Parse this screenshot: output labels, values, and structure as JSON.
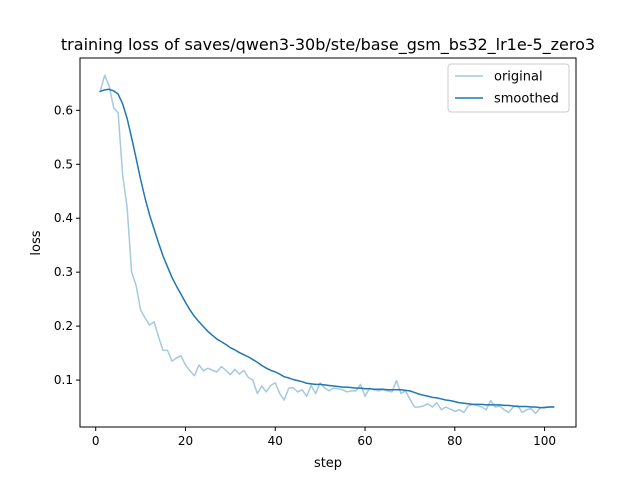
{
  "chart_data": {
    "type": "line",
    "title": "training loss of saves/qwen3-30b/ste/base_gsm_bs32_lr1e-5_zero3",
    "xlabel": "step",
    "ylabel": "loss",
    "xlim": [
      -3.5,
      107
    ],
    "ylim": [
      0.013,
      0.697
    ],
    "xticks": [
      0,
      20,
      40,
      60,
      80,
      100
    ],
    "yticks": [
      0.1,
      0.2,
      0.3,
      0.4,
      0.5,
      0.6
    ],
    "legend_position": "top-right",
    "series": [
      {
        "name": "original",
        "color": "#1f77b4",
        "alpha": 0.4,
        "x": [
          1,
          2,
          3,
          4,
          5,
          6,
          7,
          8,
          9,
          10,
          11,
          12,
          13,
          14,
          15,
          16,
          17,
          18,
          19,
          20,
          21,
          22,
          23,
          24,
          25,
          26,
          27,
          28,
          29,
          30,
          31,
          32,
          33,
          34,
          35,
          36,
          37,
          38,
          39,
          40,
          41,
          42,
          43,
          44,
          45,
          46,
          47,
          48,
          49,
          50,
          51,
          52,
          53,
          54,
          55,
          56,
          57,
          58,
          59,
          60,
          61,
          62,
          63,
          64,
          65,
          66,
          67,
          68,
          69,
          70,
          71,
          72,
          73,
          74,
          75,
          76,
          77,
          78,
          79,
          80,
          81,
          82,
          83,
          84,
          85,
          86,
          87,
          88,
          89,
          90,
          91,
          92,
          93,
          94,
          95,
          96,
          97,
          98,
          99,
          100,
          101,
          102
        ],
        "values": [
          0.635,
          0.665,
          0.645,
          0.605,
          0.595,
          0.48,
          0.42,
          0.3,
          0.275,
          0.23,
          0.215,
          0.202,
          0.208,
          0.18,
          0.155,
          0.155,
          0.135,
          0.141,
          0.145,
          0.128,
          0.117,
          0.108,
          0.128,
          0.117,
          0.122,
          0.118,
          0.115,
          0.125,
          0.118,
          0.11,
          0.12,
          0.111,
          0.118,
          0.105,
          0.1,
          0.075,
          0.089,
          0.078,
          0.09,
          0.095,
          0.075,
          0.063,
          0.085,
          0.086,
          0.078,
          0.082,
          0.07,
          0.09,
          0.075,
          0.095,
          0.085,
          0.08,
          0.085,
          0.084,
          0.082,
          0.078,
          0.08,
          0.08,
          0.092,
          0.07,
          0.085,
          0.082,
          0.08,
          0.082,
          0.08,
          0.078,
          0.099,
          0.075,
          0.08,
          0.065,
          0.05,
          0.05,
          0.052,
          0.056,
          0.05,
          0.058,
          0.045,
          0.05,
          0.046,
          0.042,
          0.045,
          0.04,
          0.052,
          0.055,
          0.053,
          0.05,
          0.045,
          0.062,
          0.05,
          0.052,
          0.045,
          0.04,
          0.05,
          0.053,
          0.04,
          0.045,
          0.047,
          0.038,
          0.048,
          0.05,
          0.05,
          0.05
        ]
      },
      {
        "name": "smoothed",
        "color": "#1f77b4",
        "alpha": 1,
        "x": [
          1,
          2,
          3,
          4,
          5,
          6,
          7,
          8,
          9,
          10,
          11,
          12,
          13,
          14,
          15,
          16,
          17,
          18,
          19,
          20,
          21,
          22,
          23,
          24,
          25,
          26,
          27,
          28,
          29,
          30,
          31,
          32,
          33,
          34,
          35,
          36,
          37,
          38,
          39,
          40,
          41,
          42,
          43,
          44,
          45,
          46,
          47,
          48,
          49,
          50,
          51,
          52,
          53,
          54,
          55,
          56,
          57,
          58,
          59,
          60,
          61,
          62,
          63,
          64,
          65,
          66,
          67,
          68,
          69,
          70,
          71,
          72,
          73,
          74,
          75,
          76,
          77,
          78,
          79,
          80,
          81,
          82,
          83,
          84,
          85,
          86,
          87,
          88,
          89,
          90,
          91,
          92,
          93,
          94,
          95,
          96,
          97,
          98,
          99,
          100,
          101,
          102
        ],
        "values": [
          0.635,
          0.638,
          0.639,
          0.636,
          0.63,
          0.612,
          0.585,
          0.549,
          0.511,
          0.472,
          0.437,
          0.406,
          0.38,
          0.354,
          0.33,
          0.31,
          0.29,
          0.274,
          0.259,
          0.244,
          0.23,
          0.218,
          0.208,
          0.199,
          0.19,
          0.183,
          0.176,
          0.171,
          0.166,
          0.16,
          0.156,
          0.151,
          0.147,
          0.143,
          0.138,
          0.133,
          0.127,
          0.122,
          0.118,
          0.115,
          0.111,
          0.106,
          0.104,
          0.101,
          0.099,
          0.097,
          0.094,
          0.093,
          0.092,
          0.092,
          0.091,
          0.09,
          0.089,
          0.088,
          0.087,
          0.087,
          0.086,
          0.085,
          0.085,
          0.084,
          0.084,
          0.083,
          0.083,
          0.083,
          0.082,
          0.082,
          0.082,
          0.082,
          0.081,
          0.08,
          0.077,
          0.074,
          0.072,
          0.07,
          0.068,
          0.067,
          0.065,
          0.063,
          0.062,
          0.06,
          0.058,
          0.057,
          0.056,
          0.055,
          0.055,
          0.055,
          0.054,
          0.054,
          0.054,
          0.054,
          0.053,
          0.053,
          0.052,
          0.051,
          0.051,
          0.051,
          0.05,
          0.05,
          0.049,
          0.049,
          0.05,
          0.05
        ]
      }
    ]
  }
}
